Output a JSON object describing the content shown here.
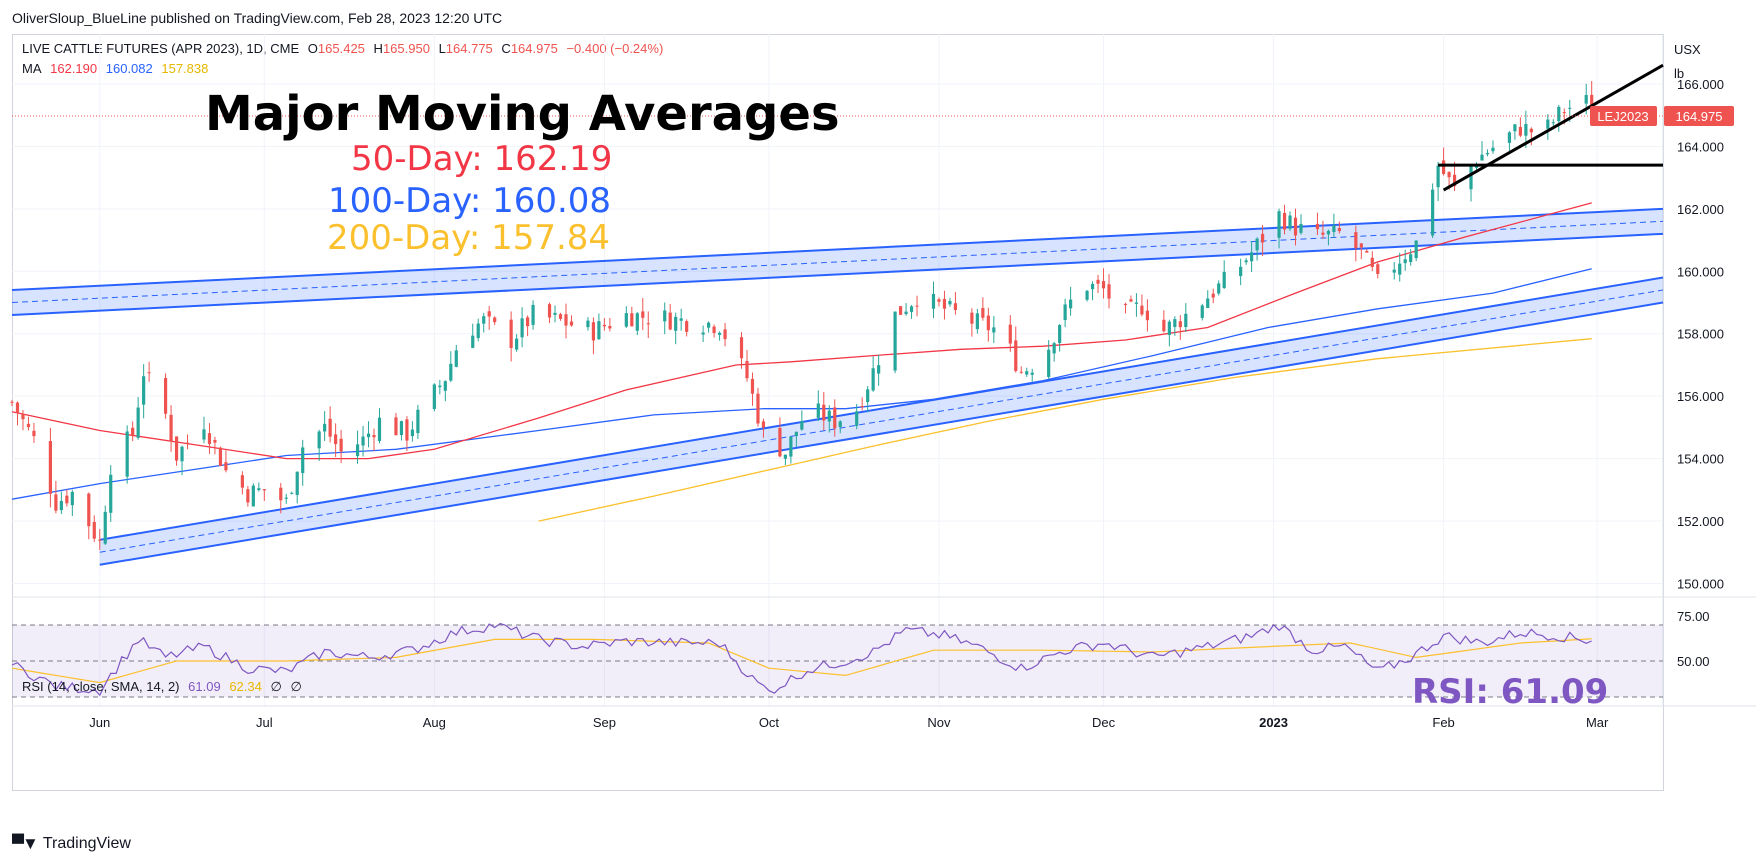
{
  "publish_line": "OliverSloup_BlueLine published on TradingView.com, Feb 28, 2023 12:20 UTC",
  "legend": {
    "symbol": "LIVE CATTLE FUTURES (APR 2023), 1D, CME",
    "open_label": "O",
    "open": "165.425",
    "high_label": "H",
    "high": "165.950",
    "low_label": "L",
    "low": "164.775",
    "close_label": "C",
    "close": "164.975",
    "change": "−0.400 (−0.24%)",
    "ma_label": "MA",
    "ma50": "162.190",
    "ma100": "160.082",
    "ma200": "157.838"
  },
  "annotations": {
    "title": "Major Moving Averages",
    "ma50_text": "50-Day: 162.19",
    "ma100_text": "100-Day: 160.08",
    "ma200_text": "200-Day: 157.84",
    "rsi_text": "RSI: 61.09"
  },
  "rsi_legend": {
    "label": "RSI (14, close, SMA, 14, 2)",
    "rsi": "61.09",
    "sma": "62.34",
    "na1": "∅",
    "na2": "∅"
  },
  "price_axis": {
    "currency": "USX",
    "unit": "lb",
    "ticks": [
      "166.000",
      "164.000",
      "162.000",
      "160.000",
      "158.000",
      "156.000",
      "154.000",
      "152.000",
      "150.000"
    ],
    "symbol_tag": "LEJ2023",
    "last_price_tag": "164.975"
  },
  "rsi_axis": {
    "ticks": [
      "75.00",
      "50.00"
    ]
  },
  "time_axis": {
    "ticks": [
      "Jun",
      "Jul",
      "Aug",
      "Sep",
      "Oct",
      "Nov",
      "Dec",
      "2023",
      "Feb",
      "Mar"
    ]
  },
  "footer": {
    "logo_text": "TradingView"
  },
  "colors": {
    "up": "#26a69a",
    "down": "#ef5350",
    "ma50": "#f23645",
    "ma100": "#2962ff",
    "ma200": "#fbc02d",
    "channel": "#2962ff",
    "rsi": "#7e57c2"
  },
  "chart_data": {
    "type": "candlestick",
    "title": "LIVE CATTLE FUTURES (APR 2023), 1D, CME",
    "ylim": [
      149.6,
      167.6
    ],
    "y_ticks": [
      150,
      152,
      154,
      156,
      158,
      160,
      162,
      164,
      166
    ],
    "x_range": [
      "2022-05-16",
      "2023-03-13"
    ],
    "x_ticks": [
      "2022-06-01",
      "2022-07-01",
      "2022-08-01",
      "2022-09-01",
      "2022-10-01",
      "2022-11-01",
      "2022-12-01",
      "2023-01-01",
      "2023-02-01",
      "2023-03-01"
    ],
    "close_anchors": [
      [
        "2022-05-16",
        155.8
      ],
      [
        "2022-05-20",
        154.6
      ],
      [
        "2022-05-24",
        152.6
      ],
      [
        "2022-05-27",
        152.9
      ],
      [
        "2022-06-01",
        151.3
      ],
      [
        "2022-06-03",
        153.8
      ],
      [
        "2022-06-07",
        154.8
      ],
      [
        "2022-06-09",
        156.8
      ],
      [
        "2022-06-13",
        155.4
      ],
      [
        "2022-06-15",
        154.1
      ],
      [
        "2022-06-20",
        155.2
      ],
      [
        "2022-06-24",
        153.6
      ],
      [
        "2022-06-28",
        152.9
      ],
      [
        "2022-07-01",
        153.0
      ],
      [
        "2022-07-05",
        152.6
      ],
      [
        "2022-07-08",
        154.4
      ],
      [
        "2022-07-12",
        155.0
      ],
      [
        "2022-07-15",
        154.2
      ],
      [
        "2022-07-19",
        154.6
      ],
      [
        "2022-07-22",
        155.2
      ],
      [
        "2022-07-27",
        154.8
      ],
      [
        "2022-07-30",
        155.6
      ],
      [
        "2022-08-03",
        156.6
      ],
      [
        "2022-08-06",
        158.0
      ],
      [
        "2022-08-10",
        158.4
      ],
      [
        "2022-08-15",
        157.8
      ],
      [
        "2022-08-19",
        158.6
      ],
      [
        "2022-08-24",
        158.4
      ],
      [
        "2022-08-30",
        158.1
      ],
      [
        "2022-09-05",
        158.6
      ],
      [
        "2022-09-12",
        158.5
      ],
      [
        "2022-09-16",
        158.4
      ],
      [
        "2022-09-22",
        158.3
      ],
      [
        "2022-09-27",
        156.6
      ],
      [
        "2022-09-30",
        154.8
      ],
      [
        "2022-10-04",
        154.2
      ],
      [
        "2022-10-08",
        155.6
      ],
      [
        "2022-10-13",
        155.2
      ],
      [
        "2022-10-17",
        155.6
      ],
      [
        "2022-10-20",
        156.8
      ],
      [
        "2022-10-24",
        158.6
      ],
      [
        "2022-10-28",
        159.2
      ],
      [
        "2022-11-02",
        158.8
      ],
      [
        "2022-11-07",
        158.4
      ],
      [
        "2022-11-12",
        158.1
      ],
      [
        "2022-11-16",
        156.8
      ],
      [
        "2022-11-20",
        157.2
      ],
      [
        "2022-11-23",
        158.4
      ],
      [
        "2022-11-27",
        159.6
      ],
      [
        "2022-12-01",
        159.4
      ],
      [
        "2022-12-05",
        158.6
      ],
      [
        "2022-12-08",
        158.9
      ],
      [
        "2022-12-12",
        158.1
      ],
      [
        "2022-12-16",
        158.6
      ],
      [
        "2022-12-20",
        159.2
      ],
      [
        "2022-12-24",
        159.8
      ],
      [
        "2022-12-28",
        160.6
      ],
      [
        "2023-01-02",
        161.8
      ],
      [
        "2023-01-05",
        161.4
      ],
      [
        "2023-01-09",
        161.1
      ],
      [
        "2023-01-13",
        161.2
      ],
      [
        "2023-01-17",
        160.6
      ],
      [
        "2023-01-20",
        159.6
      ],
      [
        "2023-01-24",
        160.4
      ],
      [
        "2023-01-27",
        160.9
      ],
      [
        "2023-01-31",
        163.4
      ],
      [
        "2023-02-03",
        162.6
      ],
      [
        "2023-02-07",
        163.6
      ],
      [
        "2023-02-11",
        164.1
      ],
      [
        "2023-02-15",
        164.6
      ],
      [
        "2023-02-19",
        164.4
      ],
      [
        "2023-02-23",
        165.2
      ],
      [
        "2023-02-27",
        165.4
      ],
      [
        "2023-02-28",
        164.975
      ]
    ],
    "ma50": [
      [
        "2022-05-16",
        155.5
      ],
      [
        "2022-06-01",
        154.9
      ],
      [
        "2022-06-20",
        154.4
      ],
      [
        "2022-07-05",
        154.0
      ],
      [
        "2022-07-20",
        154.0
      ],
      [
        "2022-08-01",
        154.3
      ],
      [
        "2022-08-20",
        155.3
      ],
      [
        "2022-09-05",
        156.2
      ],
      [
        "2022-09-25",
        157.0
      ],
      [
        "2022-10-05",
        157.1
      ],
      [
        "2022-10-20",
        157.3
      ],
      [
        "2022-11-05",
        157.5
      ],
      [
        "2022-11-20",
        157.6
      ],
      [
        "2022-12-05",
        157.8
      ],
      [
        "2022-12-20",
        158.2
      ],
      [
        "2023-01-05",
        159.3
      ],
      [
        "2023-01-20",
        160.3
      ],
      [
        "2023-02-05",
        161.1
      ],
      [
        "2023-02-28",
        162.19
      ]
    ],
    "ma100": [
      [
        "2022-05-16",
        152.7
      ],
      [
        "2022-06-01",
        153.2
      ],
      [
        "2022-06-20",
        153.7
      ],
      [
        "2022-07-05",
        154.1
      ],
      [
        "2022-07-25",
        154.3
      ],
      [
        "2022-08-20",
        154.9
      ],
      [
        "2022-09-10",
        155.4
      ],
      [
        "2022-09-30",
        155.6
      ],
      [
        "2022-10-15",
        155.6
      ],
      [
        "2022-10-31",
        155.9
      ],
      [
        "2022-11-20",
        156.5
      ],
      [
        "2022-12-10",
        157.3
      ],
      [
        "2022-12-31",
        158.2
      ],
      [
        "2023-01-20",
        158.8
      ],
      [
        "2023-02-10",
        159.3
      ],
      [
        "2023-02-28",
        160.08
      ]
    ],
    "ma200": [
      [
        "2022-08-20",
        152.0
      ],
      [
        "2022-09-10",
        152.8
      ],
      [
        "2022-09-30",
        153.6
      ],
      [
        "2022-10-20",
        154.4
      ],
      [
        "2022-11-10",
        155.2
      ],
      [
        "2022-12-01",
        155.9
      ],
      [
        "2022-12-25",
        156.6
      ],
      [
        "2023-01-20",
        157.2
      ],
      [
        "2023-02-28",
        157.84
      ]
    ],
    "upper_channel": {
      "start": [
        "2022-05-16",
        159.0
      ],
      "end": [
        "2023-03-13",
        161.6
      ],
      "width": 0.8
    },
    "lower_channel": {
      "start": [
        "2022-06-01",
        151.0
      ],
      "end": [
        "2023-03-13",
        159.4
      ],
      "width": 0.8
    },
    "horizontal_line": {
      "start": "2023-01-31",
      "end": "2023-03-13",
      "y": 163.4
    },
    "trend_line": {
      "start": [
        "2023-02-01",
        162.6
      ],
      "end": [
        "2023-03-13",
        166.6
      ]
    },
    "rsi": {
      "ylim": [
        25,
        85
      ],
      "levels": [
        70,
        50,
        30
      ],
      "values": [
        [
          "2022-05-16",
          48
        ],
        [
          "2022-05-24",
          36
        ],
        [
          "2022-06-01",
          34
        ],
        [
          "2022-06-08",
          62
        ],
        [
          "2022-06-13",
          52
        ],
        [
          "2022-06-20",
          58
        ],
        [
          "2022-06-28",
          46
        ],
        [
          "2022-07-05",
          44
        ],
        [
          "2022-07-12",
          55
        ],
        [
          "2022-07-20",
          52
        ],
        [
          "2022-07-28",
          56
        ],
        [
          "2022-08-05",
          66
        ],
        [
          "2022-08-12",
          70
        ],
        [
          "2022-08-20",
          62
        ],
        [
          "2022-08-28",
          58
        ],
        [
          "2022-09-05",
          61
        ],
        [
          "2022-09-15",
          60
        ],
        [
          "2022-09-22",
          60
        ],
        [
          "2022-09-28",
          40
        ],
        [
          "2022-10-01",
          33
        ],
        [
          "2022-10-08",
          45
        ],
        [
          "2022-10-15",
          50
        ],
        [
          "2022-10-20",
          55
        ],
        [
          "2022-10-26",
          67
        ],
        [
          "2022-11-02",
          64
        ],
        [
          "2022-11-08",
          58
        ],
        [
          "2022-11-16",
          46
        ],
        [
          "2022-11-24",
          56
        ],
        [
          "2022-12-01",
          60
        ],
        [
          "2022-12-10",
          52
        ],
        [
          "2022-12-20",
          58
        ],
        [
          "2022-12-28",
          64
        ],
        [
          "2023-01-02",
          70
        ],
        [
          "2023-01-08",
          56
        ],
        [
          "2023-01-14",
          58
        ],
        [
          "2023-01-20",
          44
        ],
        [
          "2023-01-26",
          52
        ],
        [
          "2023-02-01",
          64
        ],
        [
          "2023-02-08",
          60
        ],
        [
          "2023-02-15",
          66
        ],
        [
          "2023-02-22",
          64
        ],
        [
          "2023-02-28",
          61.09
        ]
      ],
      "sma": [
        [
          "2022-05-16",
          46
        ],
        [
          "2022-06-01",
          38
        ],
        [
          "2022-06-15",
          50
        ],
        [
          "2022-07-05",
          50
        ],
        [
          "2022-07-25",
          52
        ],
        [
          "2022-08-12",
          62
        ],
        [
          "2022-08-30",
          62
        ],
        [
          "2022-09-20",
          60
        ],
        [
          "2022-10-01",
          46
        ],
        [
          "2022-10-15",
          42
        ],
        [
          "2022-10-31",
          56
        ],
        [
          "2022-11-20",
          56
        ],
        [
          "2022-12-10",
          55
        ],
        [
          "2022-12-31",
          58
        ],
        [
          "2023-01-15",
          60
        ],
        [
          "2023-01-27",
          52
        ],
        [
          "2023-02-15",
          60
        ],
        [
          "2023-02-28",
          62.34
        ]
      ]
    }
  }
}
